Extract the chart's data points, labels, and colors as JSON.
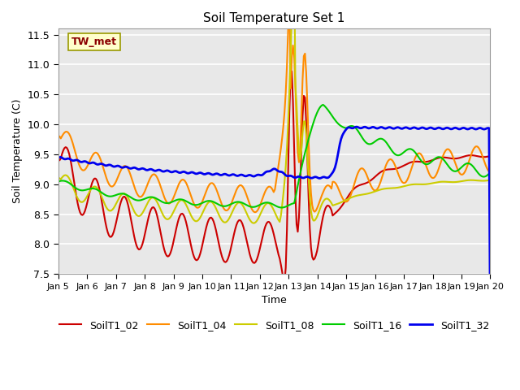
{
  "title": "Soil Temperature Set 1",
  "xlabel": "Time",
  "ylabel": "Soil Temperature (C)",
  "ylim": [
    7.5,
    11.6
  ],
  "annotation": "TW_met",
  "annotation_color": "#8B0000",
  "annotation_bg": "#FFFFCC",
  "background_color": "#E8E8E8",
  "series": {
    "SoilT1_02": {
      "color": "#CC0000",
      "linewidth": 1.5
    },
    "SoilT1_04": {
      "color": "#FF8C00",
      "linewidth": 1.5
    },
    "SoilT1_08": {
      "color": "#CCCC00",
      "linewidth": 1.5
    },
    "SoilT1_16": {
      "color": "#00CC00",
      "linewidth": 1.5
    },
    "SoilT1_32": {
      "color": "#0000EE",
      "linewidth": 2.0
    }
  },
  "x_start_day": 5,
  "x_end_day": 20,
  "x_ticks": [
    5,
    6,
    7,
    8,
    9,
    10,
    11,
    12,
    13,
    14,
    15,
    16,
    17,
    18,
    19,
    20
  ],
  "x_tick_labels": [
    "Jan 5",
    "Jan 6",
    "Jan 7",
    "Jan 8",
    "Jan 9",
    "Jan 10",
    "Jan 11",
    "Jan 12",
    "Jan 13",
    "Jan 14",
    "Jan 15",
    "Jan 16",
    "Jan 17",
    "Jan 18",
    "Jan 19",
    "Jan 20"
  ]
}
